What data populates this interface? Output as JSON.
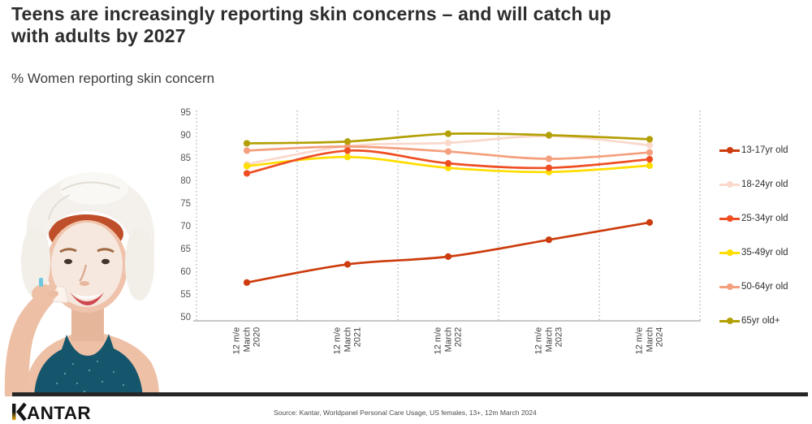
{
  "slide": {
    "title_lines": [
      "Teens are increasingly reporting skin concerns – and will catch up",
      "with adults by 2027"
    ],
    "subtitle": "% Women reporting skin concern",
    "photo": {
      "description": "Woman with white towel on her head peeling off a sheet face mask"
    },
    "footer": {
      "logo": "KANTAR",
      "source": "Source: Kantar, Worldpanel Personal Care Usage, US females, 13+, 12m March 2024"
    }
  },
  "chart_data": {
    "type": "line",
    "title": "% Women reporting skin concern",
    "categories": [
      "12 m/e March 2020",
      "12 m/e March 2021",
      "12 m/e March 2022",
      "12 m/e March 2023",
      "12 m/e March 2024"
    ],
    "series": [
      {
        "name": "13-17yr old",
        "color": "#cc3c0d",
        "values": [
          57.8,
          61.8,
          63.5,
          67.2,
          71.0
        ]
      },
      {
        "name": "18-24yr old",
        "color": "#fad8cb",
        "values": [
          83.8,
          87.8,
          88.5,
          90.0,
          88.0
        ]
      },
      {
        "name": "25-34yr old",
        "color": "#ef4e23",
        "values": [
          81.8,
          86.8,
          84.0,
          83.0,
          84.9
        ]
      },
      {
        "name": "35-49yr old",
        "color": "#ffdd00",
        "values": [
          83.4,
          85.4,
          83.0,
          82.1,
          83.5
        ]
      },
      {
        "name": "50-64yr old",
        "color": "#f4a07e",
        "values": [
          86.8,
          87.7,
          86.6,
          85.0,
          86.4
        ]
      },
      {
        "name": "65yr old+",
        "color": "#b3a005",
        "values": [
          88.4,
          88.8,
          90.5,
          90.2,
          89.3
        ]
      }
    ],
    "ylim": [
      50,
      95
    ],
    "ytick_step": 5,
    "grid": "vertical-dotted",
    "legend_position": "right"
  }
}
